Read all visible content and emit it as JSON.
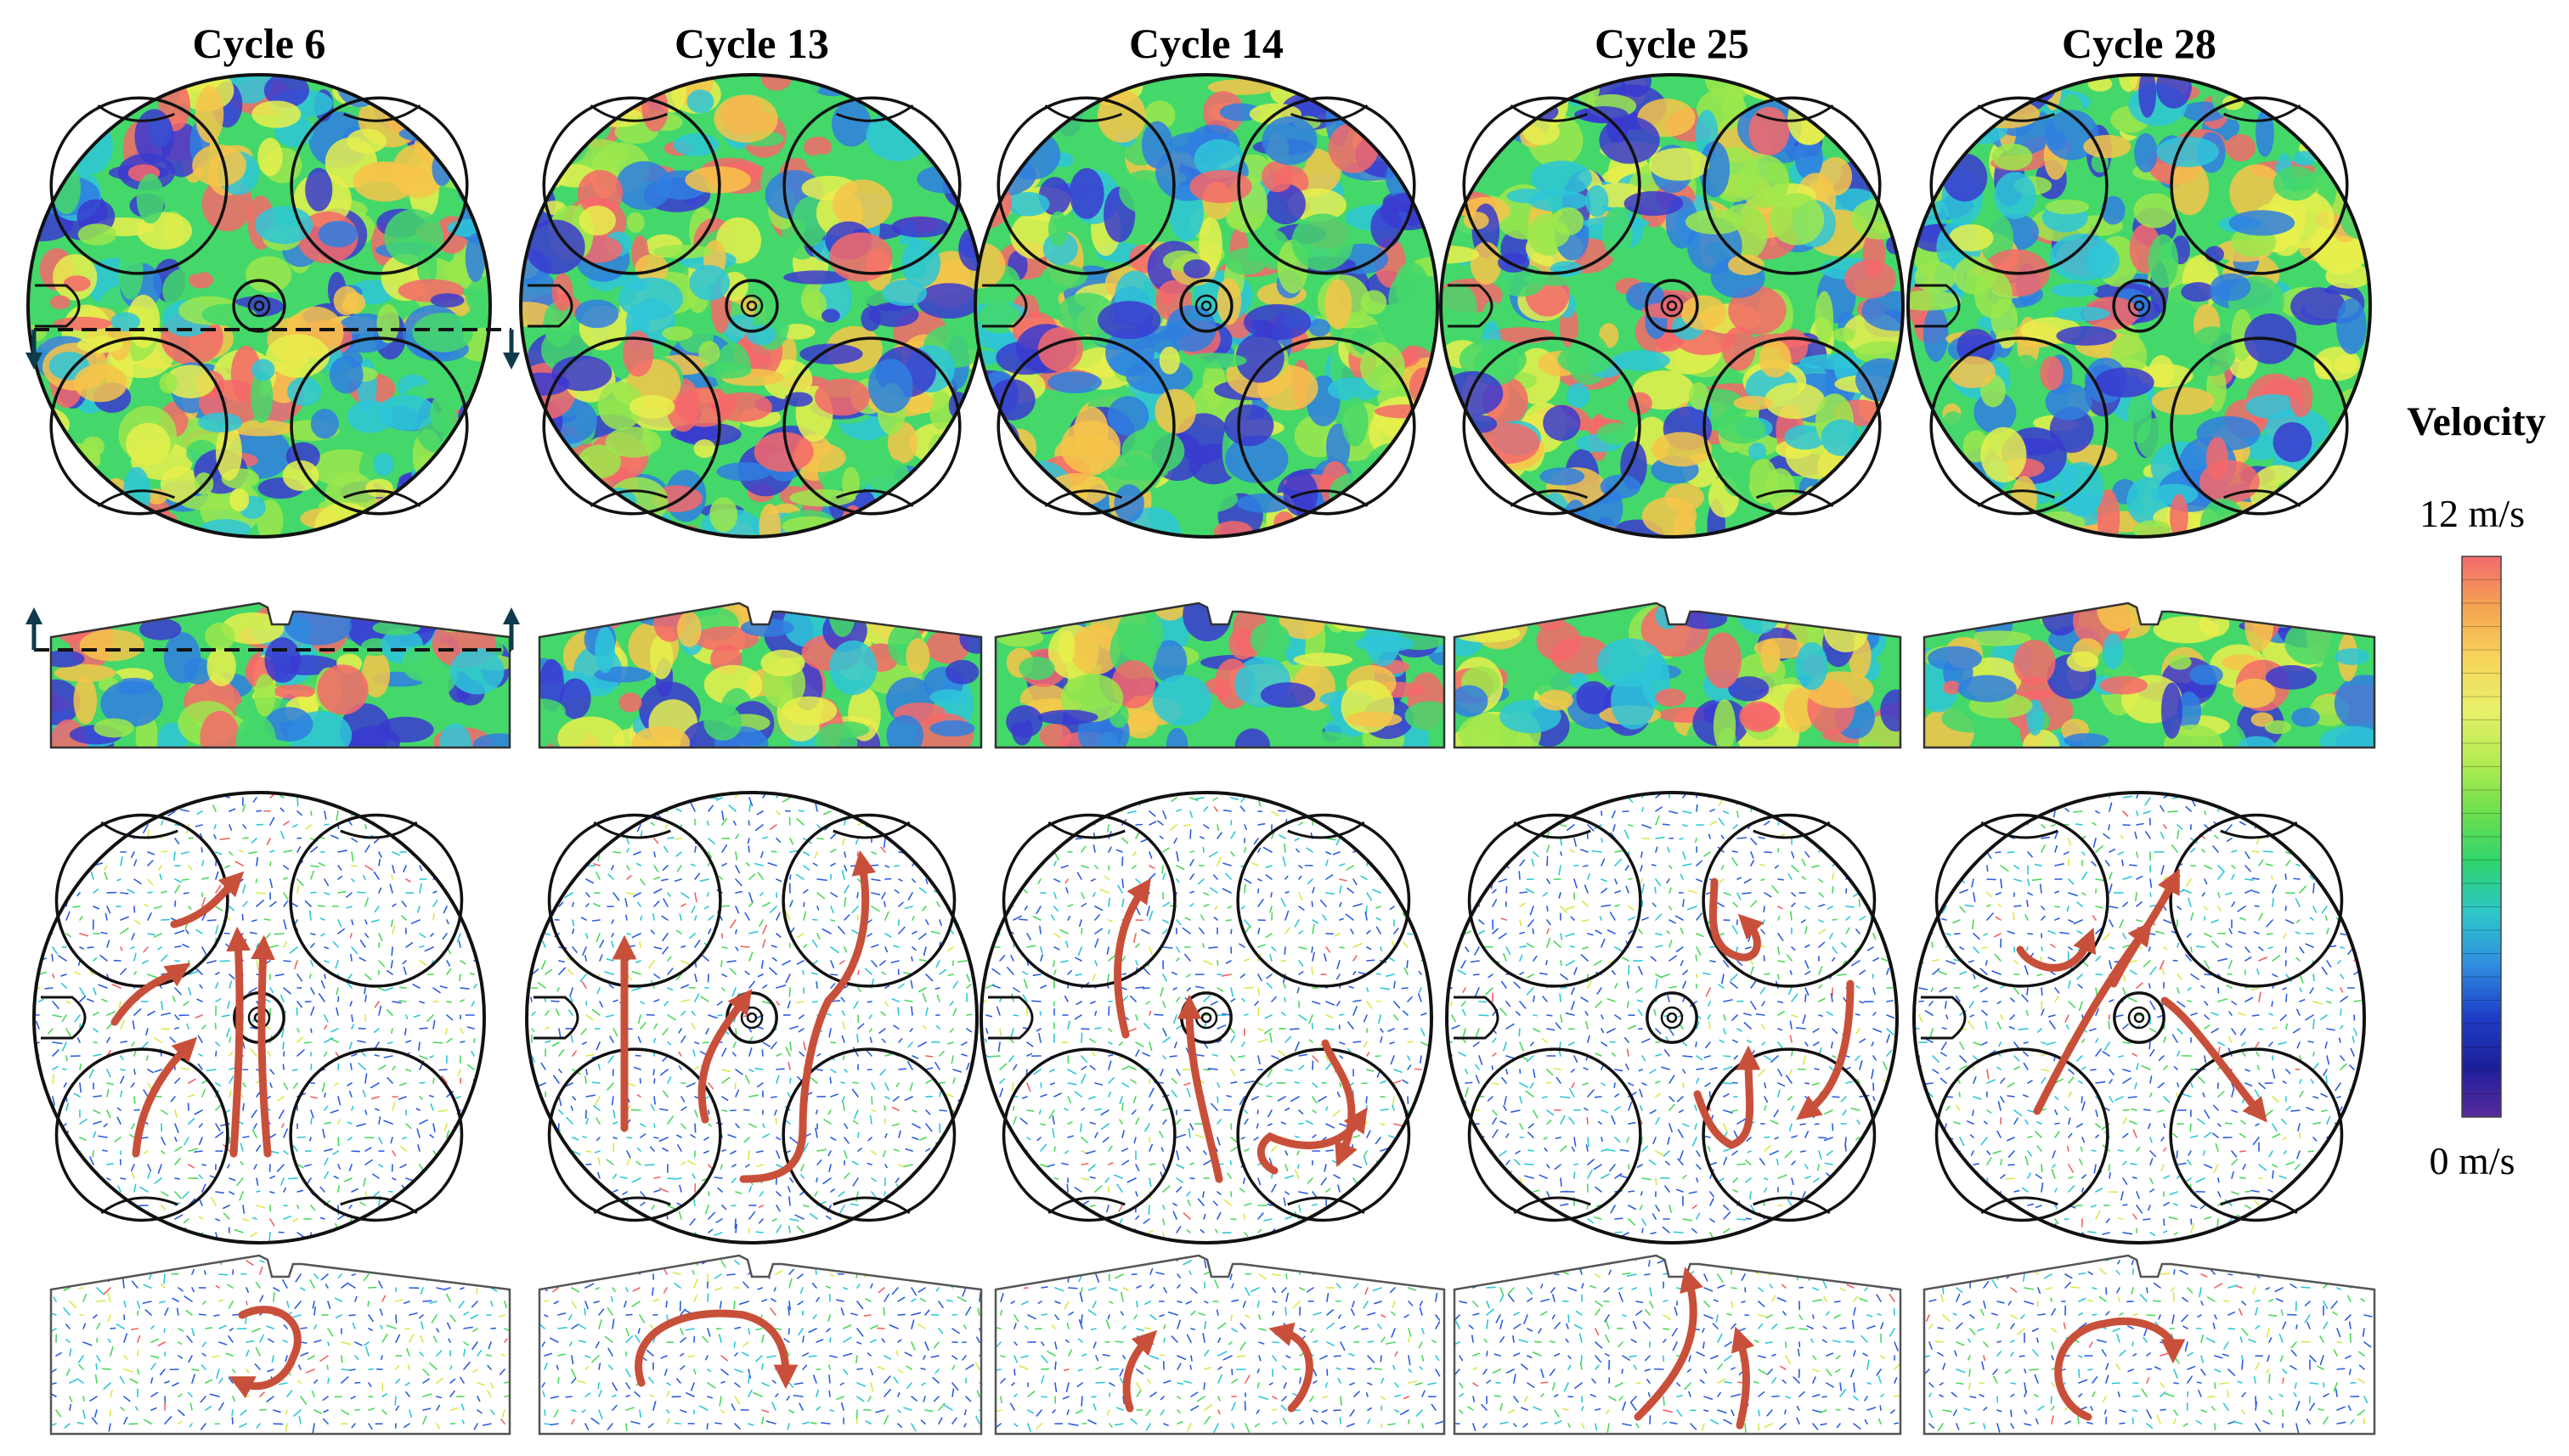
{
  "columns": [
    {
      "title": "Cycle 6"
    },
    {
      "title": "Cycle 13"
    },
    {
      "title": "Cycle 14"
    },
    {
      "title": "Cycle 25"
    },
    {
      "title": "Cycle 28"
    }
  ],
  "legend": {
    "title": "Velocity",
    "max_label": "12 m/s",
    "min_label": "0 m/s",
    "stops": [
      "#f26a6e",
      "#f5a352",
      "#f7d45a",
      "#e8f06a",
      "#b6ec52",
      "#6ee04c",
      "#2fd46e",
      "#2ec6c9",
      "#2f8fe0",
      "#1e3fc8",
      "#1a1f9a",
      "#5a2a9e"
    ]
  },
  "palette": {
    "contour": [
      "#3a3ad0",
      "#2f7fe0",
      "#2ec6d8",
      "#44d86a",
      "#9be84c",
      "#e8f04c",
      "#f7c44a",
      "#f6696a"
    ],
    "vector": [
      "#2b5be0",
      "#2ec6d8",
      "#4ad85a",
      "#d8e84a",
      "#f26060"
    ],
    "arrow": "#c8503a",
    "cut_line": "#0e3a4a"
  }
}
